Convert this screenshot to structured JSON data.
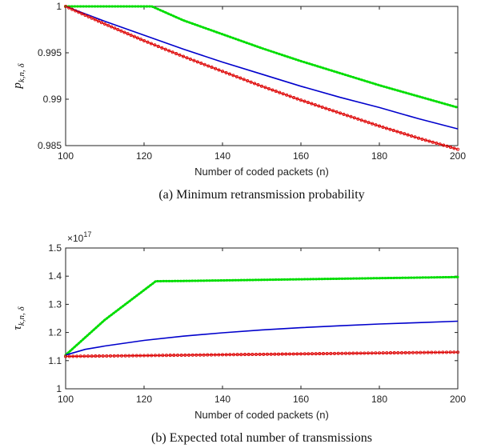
{
  "chart_data": [
    {
      "type": "line",
      "caption": "(a) Minimum retransmission probability",
      "xlabel": "Number of coded packets (n)",
      "ylabel_main": "p",
      "ylabel_sub": "k,n, δ",
      "xlim": [
        100,
        200
      ],
      "ylim": [
        0.985,
        1.0
      ],
      "xticks": [
        "100",
        "120",
        "140",
        "160",
        "180",
        "200"
      ],
      "yticks": [
        "0.985",
        "0.99",
        "0.995",
        "1"
      ],
      "series": [
        {
          "color": "#00dd00",
          "style": "dotted",
          "x": [
            100,
            110,
            122,
            130,
            140,
            150,
            160,
            170,
            180,
            190,
            200
          ],
          "y": [
            1.0,
            1.0,
            1.0,
            0.9985,
            0.997,
            0.9955,
            0.9941,
            0.9928,
            0.9915,
            0.9903,
            0.9891
          ]
        },
        {
          "color": "#0000cc",
          "style": "solid",
          "x": [
            100,
            110,
            120,
            130,
            140,
            150,
            160,
            170,
            180,
            190,
            200
          ],
          "y": [
            1.0,
            0.9984,
            0.9969,
            0.9954,
            0.994,
            0.9927,
            0.9914,
            0.9902,
            0.9891,
            0.9879,
            0.9868
          ]
        },
        {
          "color": "#dd0000",
          "style": "marker",
          "x": [
            100,
            110,
            120,
            130,
            140,
            150,
            160,
            170,
            180,
            190,
            200
          ],
          "y": [
            1.0,
            0.9981,
            0.9963,
            0.9946,
            0.993,
            0.9914,
            0.9899,
            0.9885,
            0.9871,
            0.9858,
            0.9846
          ]
        }
      ]
    },
    {
      "type": "line",
      "caption": "(b) Expected total number of transmissions",
      "xlabel": "Number of coded packets (n)",
      "ylabel_main": "τ",
      "ylabel_sub": "k,n, δ",
      "multiplier": "×10",
      "multiplier_exp": "17",
      "xlim": [
        100,
        200
      ],
      "ylim": [
        1.0,
        1.5
      ],
      "xticks": [
        "100",
        "120",
        "140",
        "160",
        "180",
        "200"
      ],
      "yticks": [
        "1",
        "1.1",
        "1.2",
        "1.3",
        "1.4",
        "1.5"
      ],
      "series": [
        {
          "color": "#00dd00",
          "style": "dotted",
          "x": [
            100,
            110,
            123,
            130,
            140,
            150,
            160,
            170,
            180,
            190,
            200
          ],
          "y": [
            1.12,
            1.245,
            1.382,
            1.383,
            1.385,
            1.387,
            1.389,
            1.391,
            1.393,
            1.395,
            1.397
          ]
        },
        {
          "color": "#0000cc",
          "style": "solid",
          "x": [
            100,
            105,
            110,
            120,
            130,
            140,
            150,
            160,
            170,
            180,
            190,
            200
          ],
          "y": [
            1.12,
            1.14,
            1.152,
            1.172,
            1.187,
            1.199,
            1.209,
            1.217,
            1.224,
            1.23,
            1.235,
            1.24
          ]
        },
        {
          "color": "#dd0000",
          "style": "marker",
          "x": [
            100,
            120,
            140,
            160,
            180,
            200
          ],
          "y": [
            1.115,
            1.118,
            1.121,
            1.124,
            1.127,
            1.13
          ]
        }
      ]
    }
  ]
}
